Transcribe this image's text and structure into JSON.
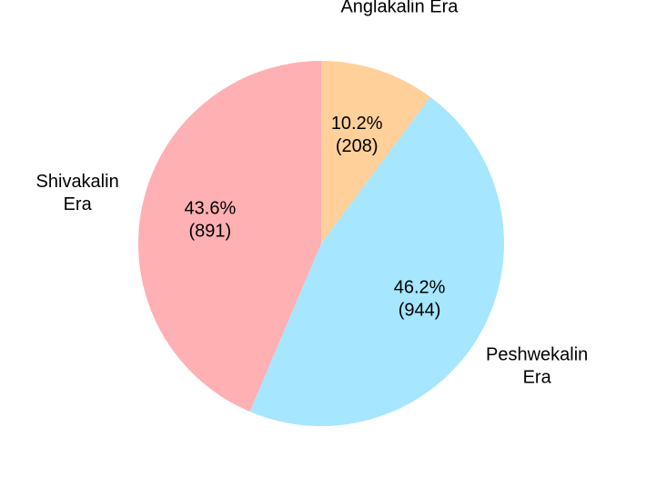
{
  "chart_data": {
    "type": "pie",
    "categories": [
      "Anglakalin Era",
      "Peshwekalin\nEra",
      "Shivakalin\nEra"
    ],
    "values": [
      208,
      944,
      891
    ],
    "value_labels": [
      "10.2%\n(208)",
      "46.2%\n(944)",
      "43.6%\n(891)"
    ],
    "colors": [
      "#ffd099",
      "#a6e6ff",
      "#ffb0b3"
    ]
  }
}
